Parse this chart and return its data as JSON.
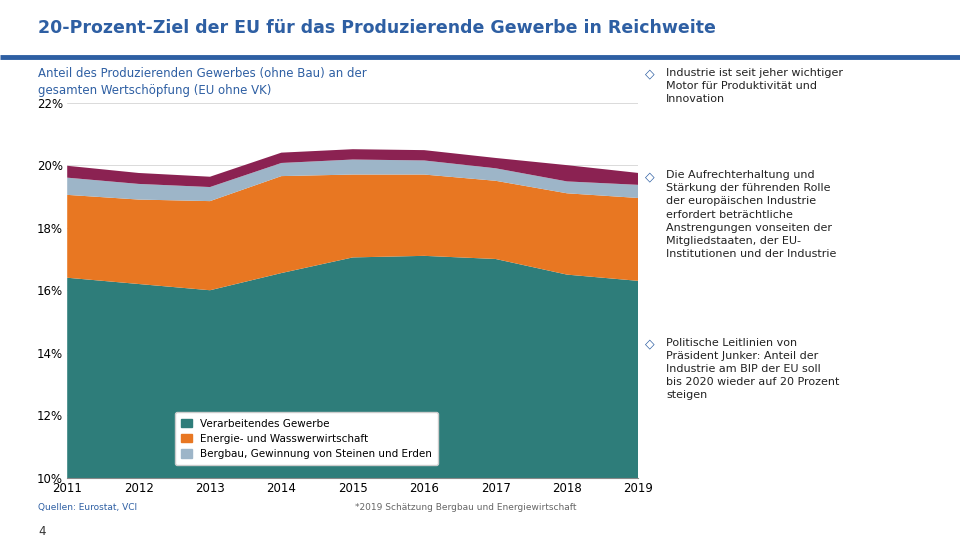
{
  "title": "20-Prozent-Ziel der EU für das Produzierende Gewerbe in Reichweite",
  "subtitle_line1": "Anteil des Produzierenden Gewerbes (ohne Bau) an der",
  "subtitle_line2": "gesamten Wertschöpfung (EU ohne VK)",
  "years": [
    2011,
    2012,
    2013,
    2014,
    2015,
    2016,
    2017,
    2018,
    2019
  ],
  "verarbeitendes": [
    16.4,
    16.2,
    16.0,
    16.55,
    17.05,
    17.1,
    17.0,
    16.5,
    16.3
  ],
  "energie": [
    2.65,
    2.7,
    2.85,
    3.1,
    2.65,
    2.6,
    2.5,
    2.6,
    2.65
  ],
  "bergbau": [
    0.55,
    0.5,
    0.45,
    0.42,
    0.48,
    0.45,
    0.4,
    0.38,
    0.42
  ],
  "remainder": [
    0.38,
    0.35,
    0.33,
    0.33,
    0.33,
    0.33,
    0.33,
    0.52,
    0.38
  ],
  "color_verarbeitendes": "#2e7d7a",
  "color_energie": "#e87722",
  "color_bergbau": "#9db5c8",
  "color_remainder": "#8b2252",
  "title_color": "#2e5fa3",
  "subtitle_color": "#2e5fa3",
  "background_color": "#ffffff",
  "ylim": [
    10,
    22
  ],
  "yticks": [
    10,
    12,
    14,
    16,
    18,
    20,
    22
  ],
  "footnote_left": "Quellen: Eurostat, VCI",
  "footnote_right": "*2019 Schätzung Bergbau und Energiewirtschaft",
  "bullet_color": "#2e5fa3",
  "bullet_text_1": "Industrie ist seit jeher wichtiger\nMotor für Produktivität und\nInnovation",
  "bullet_text_2": "Die Aufrechterhaltung und\nStärkung der führenden Rolle\nder europäischen Industrie\nerfordert beträchtliche\nAnstrengungen vonseiten der\nMitgliedstaaten, der EU-\nInstitutionen und der Industrie",
  "bullet_text_3": "Politische Leitlinien von\nPräsident Junker: Anteil der\nIndustrie am BIP der EU soll\nbis 2020 wieder auf 20 Prozent\nsteigen",
  "legend_labels": [
    "Verarbeitendes Gewerbe",
    "Energie- und Wasswerwirtschaft",
    "Bergbau, Gewinnung von Steinen und Erden"
  ],
  "page_number": "4"
}
